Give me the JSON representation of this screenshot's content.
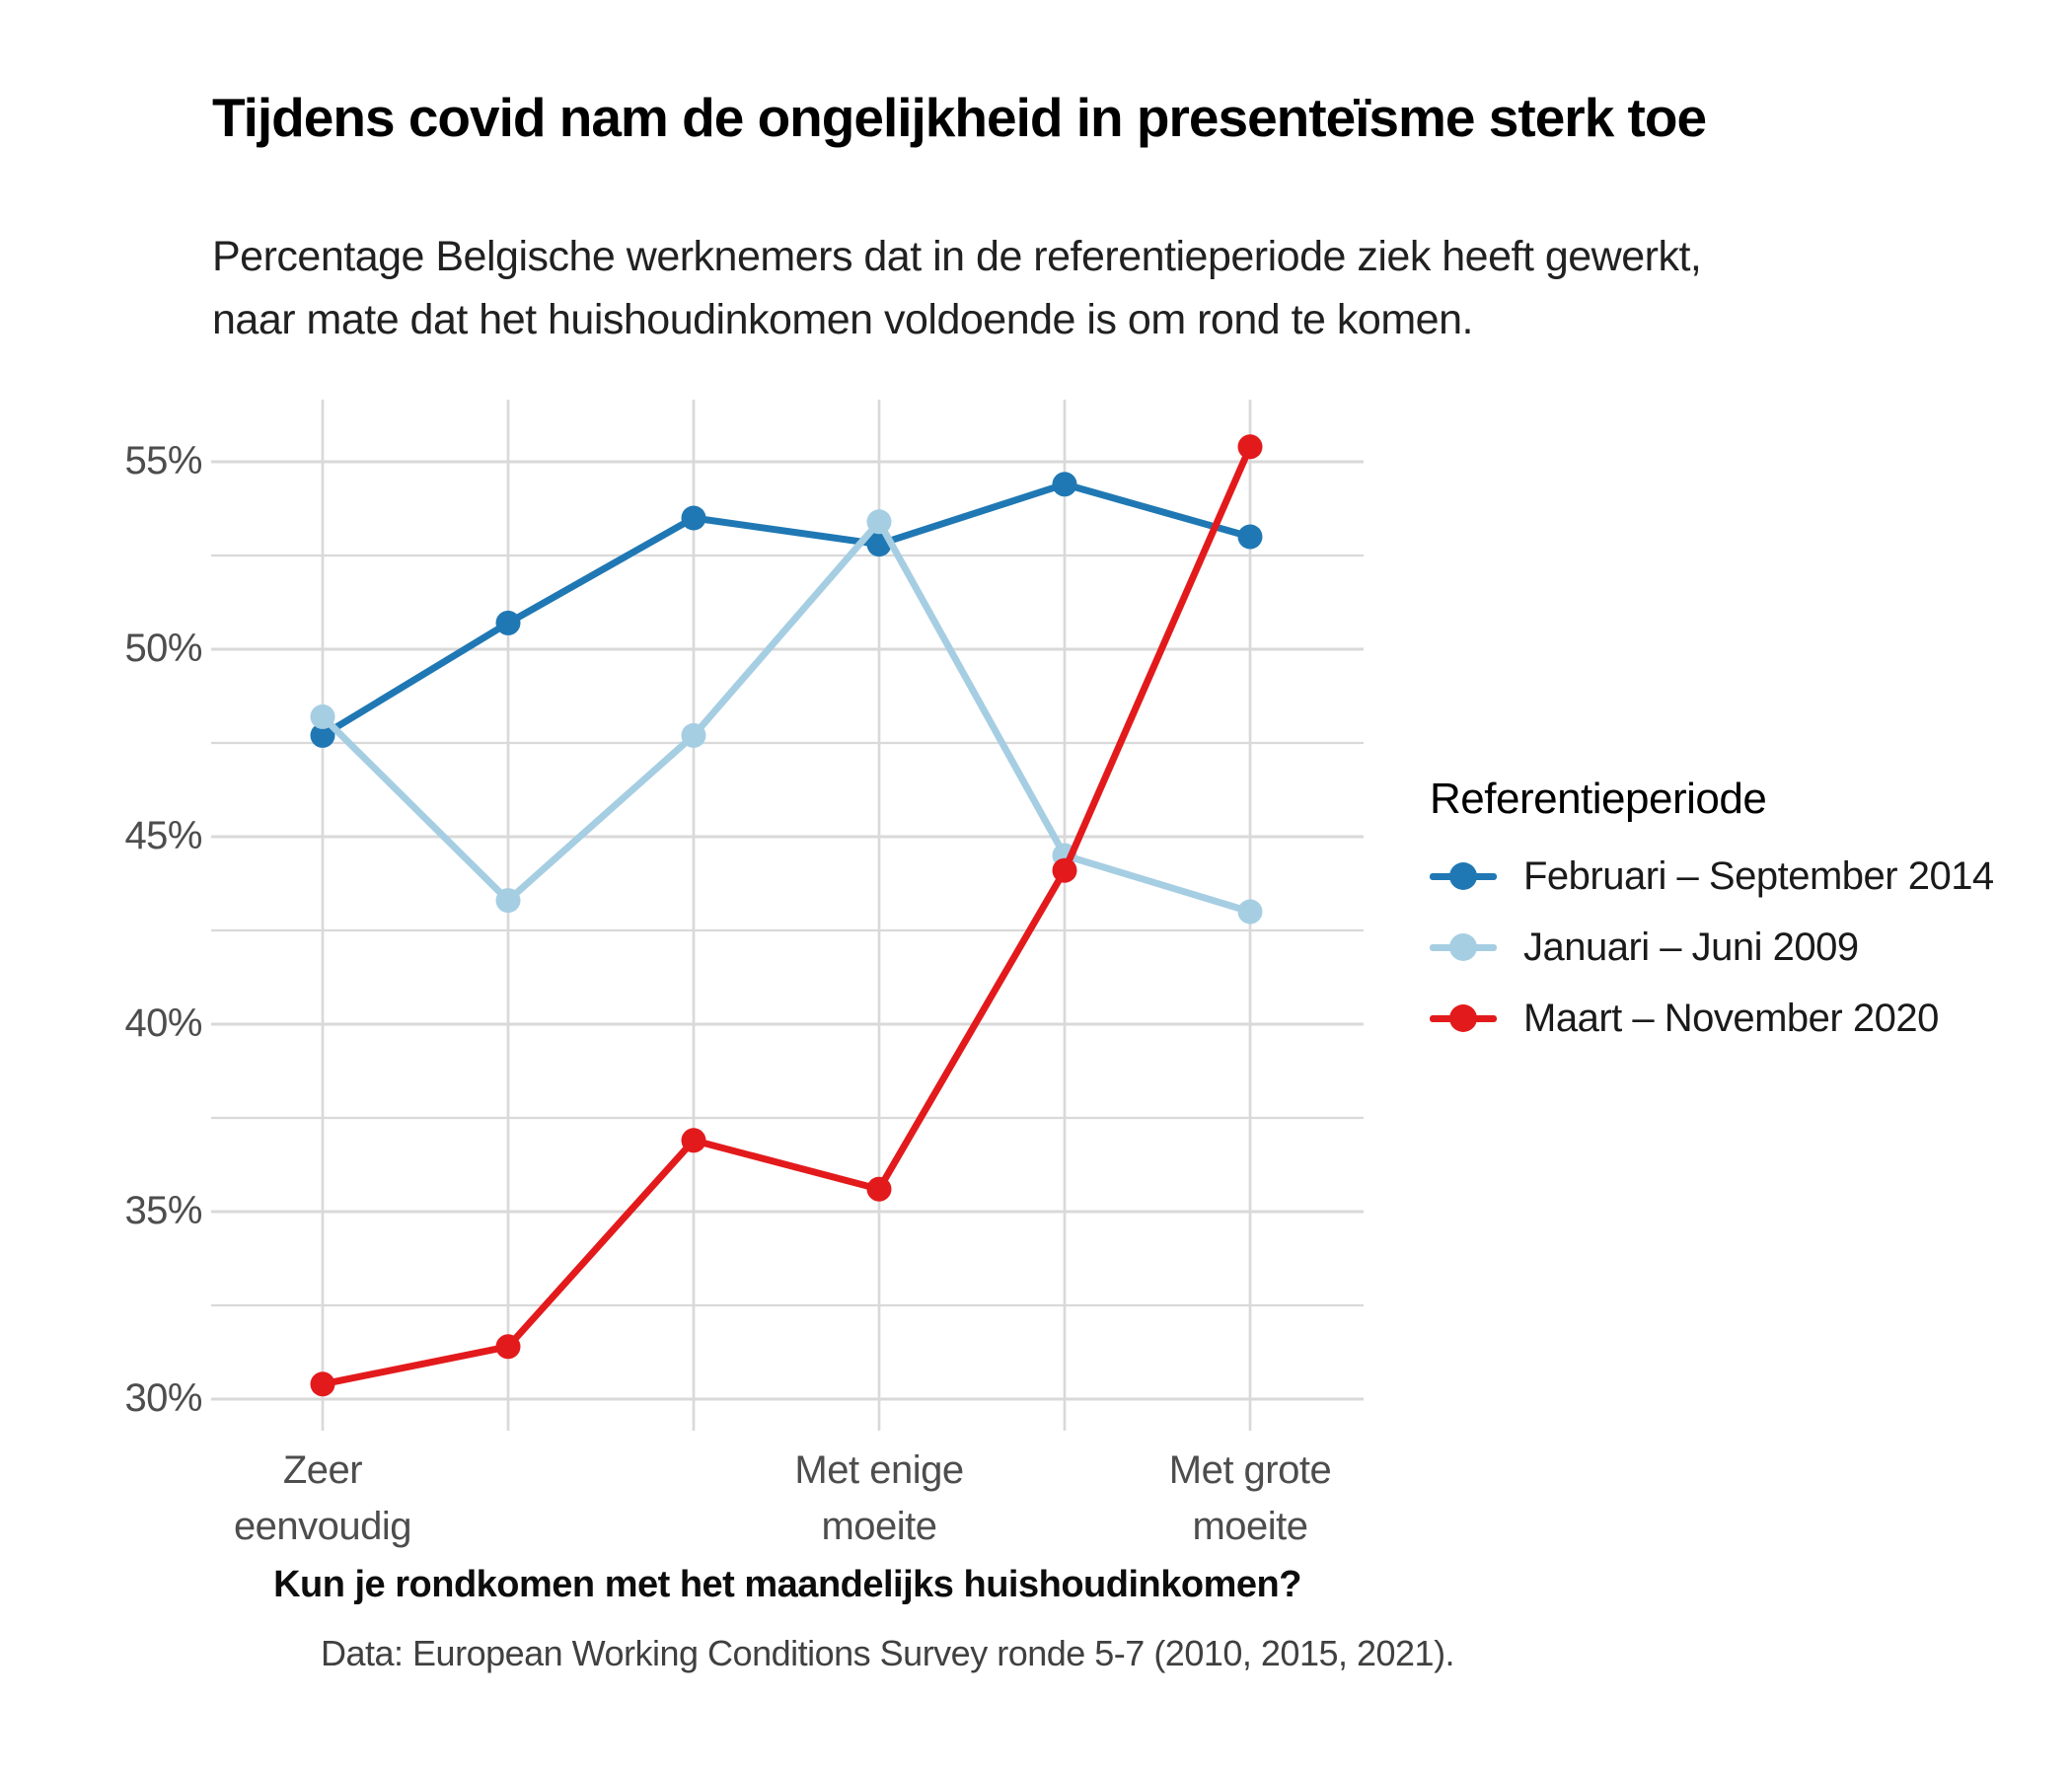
{
  "chart_data": {
    "type": "line",
    "title": "Tijdens covid nam de ongelijkheid in presenteïsme sterk toe",
    "subtitle_line1": "Percentage Belgische werknemers dat in de referentieperiode ziek heeft gewerkt,",
    "subtitle_line2": "naar mate dat het huishoudinkomen voldoende is om rond te komen.",
    "xlabel": "Kun je rondkomen met het maandelijks huishoudinkomen?",
    "ylabel": "",
    "caption": "Data: European Working Conditions Survey ronde 5-7 (2010, 2015, 2021).",
    "categories": [
      "Zeer eenvoudig",
      "",
      "",
      "Met enige moeite",
      "",
      "Met grote moeite"
    ],
    "x_tick_labels": [
      {
        "index": 0,
        "text": "Zeer\neenvoudig"
      },
      {
        "index": 3,
        "text": "Met enige\nmoeite"
      },
      {
        "index": 5,
        "text": "Met grote\nmoeite"
      }
    ],
    "y_ticks": [
      {
        "value": 55,
        "label": "55%"
      },
      {
        "value": 50,
        "label": "50%"
      },
      {
        "value": 45,
        "label": "45%"
      },
      {
        "value": 40,
        "label": "40%"
      },
      {
        "value": 35,
        "label": "35%"
      },
      {
        "value": 30,
        "label": "30%"
      }
    ],
    "y_minor_ticks": [
      52.5,
      47.5,
      42.5,
      37.5,
      32.5
    ],
    "ylim": [
      29.15,
      56.65
    ],
    "grid": {
      "on": true,
      "color": "#d9d9d9",
      "background": "#ffffff"
    },
    "legend": {
      "title": "Referentieperiode",
      "position": "right"
    },
    "series": [
      {
        "name": "Februari – September 2014",
        "color": "#1f78b4",
        "values": [
          47.7,
          50.7,
          53.5,
          52.8,
          54.4,
          53.0
        ]
      },
      {
        "name": "Januari – Juni 2009",
        "color": "#a6cee3",
        "values": [
          48.2,
          43.3,
          47.7,
          53.4,
          44.5,
          43.0
        ]
      },
      {
        "name": "Maart – November 2020",
        "color": "#e31a1c",
        "values": [
          30.4,
          31.4,
          36.9,
          35.6,
          44.1,
          55.4
        ]
      }
    ]
  }
}
